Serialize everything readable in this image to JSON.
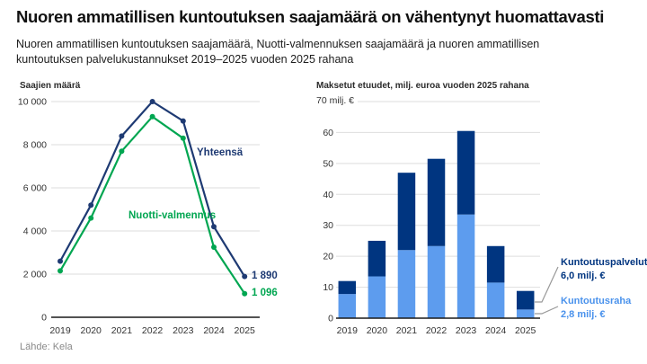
{
  "header": {
    "title": "Nuoren ammatillisen kuntoutuksen saajamäärä on vähentynyt huomattavasti",
    "subtitle": "Nuoren ammatillisen kuntoutuksen saajamäärä, Nuotti-valmennuksen saajamäärä ja nuoren ammatillisen kuntoutuksen palvelukustannukset 2019–2025 vuoden 2025 rahana"
  },
  "source": "Lähde: Kela",
  "colors": {
    "navy_line": "#1e3a73",
    "navy_bar": "#003580",
    "lightblue": "#5d9cee",
    "lightblue_text": "#4a92ec",
    "green": "#00a651",
    "grid": "#dedede",
    "axis": "#1a1a1a",
    "tick": "#333333",
    "leader": "#999999"
  },
  "chart_data": [
    {
      "type": "line",
      "title": "Saajien määrä",
      "x": [
        "2019",
        "2020",
        "2021",
        "2022",
        "2023",
        "2024",
        "2025"
      ],
      "ylim": [
        0,
        10000
      ],
      "yticks": [
        {
          "v": 0,
          "label": "0"
        },
        {
          "v": 2000,
          "label": "2 000"
        },
        {
          "v": 4000,
          "label": "4 000"
        },
        {
          "v": 6000,
          "label": "6 000"
        },
        {
          "v": 8000,
          "label": "8 000"
        },
        {
          "v": 10000,
          "label": "10 000"
        }
      ],
      "series": [
        {
          "name": "Yhteensä",
          "color_key": "navy_line",
          "values": [
            2600,
            5200,
            8400,
            10000,
            9100,
            4200,
            1890
          ],
          "end_label": "1 890"
        },
        {
          "name": "Nuotti-valmennus",
          "color_key": "green",
          "values": [
            2150,
            4600,
            7700,
            9300,
            8300,
            3250,
            1096
          ],
          "end_label": "1 096"
        }
      ]
    },
    {
      "type": "stacked-bar",
      "title": "Maksetut etuudet, milj. euroa vuoden 2025 rahana",
      "ymax_label": "70 milj. €",
      "categories": [
        "2019",
        "2020",
        "2021",
        "2022",
        "2023",
        "2024",
        "2025"
      ],
      "ylim": [
        0,
        70
      ],
      "yticks": [
        0,
        10,
        20,
        30,
        40,
        50,
        60
      ],
      "series": [
        {
          "name": "Kuntoutusraha",
          "color_key": "lightblue",
          "values": [
            7.8,
            13.5,
            22,
            23.3,
            33.5,
            11.5,
            2.8
          ]
        },
        {
          "name": "Kuntoutuspalvelut",
          "color_key": "navy_bar",
          "values": [
            4.2,
            11.5,
            25,
            28.2,
            27,
            11.8,
            6
          ]
        }
      ],
      "annotations": [
        {
          "label": "Kuntoutuspalvelut",
          "value": "6,0 milj. €",
          "color_key": "navy_bar"
        },
        {
          "label": "Kuntoutusraha",
          "value": "2,8 milj. €",
          "color_key": "lightblue_text"
        }
      ]
    }
  ]
}
